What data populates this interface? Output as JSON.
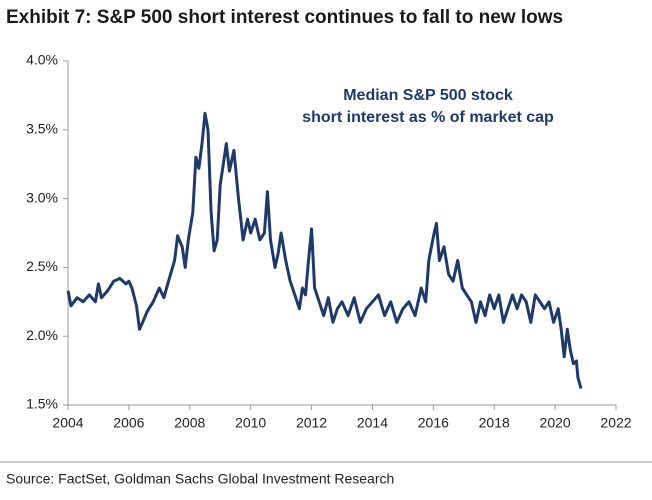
{
  "chart_data": {
    "type": "line",
    "title": "Exhibit 7: S&P 500 short interest continues to fall to new lows",
    "annotation": [
      "Median S&P 500 stock",
      "short interest as % of market cap"
    ],
    "source": "Source: FactSet, Goldman Sachs Global Investment Research",
    "color": "#1f3a68",
    "x": [
      2004.0,
      2004.1,
      2004.3,
      2004.5,
      2004.7,
      2004.9,
      2005.0,
      2005.1,
      2005.3,
      2005.5,
      2005.7,
      2005.9,
      2006.0,
      2006.1,
      2006.25,
      2006.35,
      2006.45,
      2006.6,
      2006.8,
      2007.0,
      2007.15,
      2007.3,
      2007.5,
      2007.6,
      2007.75,
      2007.85,
      2007.95,
      2008.1,
      2008.2,
      2008.3,
      2008.4,
      2008.5,
      2008.6,
      2008.7,
      2008.8,
      2008.9,
      2009.0,
      2009.1,
      2009.2,
      2009.3,
      2009.45,
      2009.6,
      2009.75,
      2009.9,
      2010.0,
      2010.15,
      2010.3,
      2010.45,
      2010.55,
      2010.65,
      2010.8,
      2010.9,
      2011.0,
      2011.15,
      2011.3,
      2011.45,
      2011.6,
      2011.7,
      2011.8,
      2011.9,
      2012.0,
      2012.1,
      2012.25,
      2012.4,
      2012.55,
      2012.7,
      2012.85,
      2013.0,
      2013.2,
      2013.4,
      2013.6,
      2013.8,
      2014.0,
      2014.2,
      2014.4,
      2014.6,
      2014.8,
      2015.0,
      2015.2,
      2015.4,
      2015.6,
      2015.75,
      2015.85,
      2016.0,
      2016.1,
      2016.2,
      2016.35,
      2016.5,
      2016.65,
      2016.8,
      2016.95,
      2017.1,
      2017.25,
      2017.4,
      2017.55,
      2017.7,
      2017.85,
      2018.0,
      2018.15,
      2018.3,
      2018.45,
      2018.6,
      2018.75,
      2018.9,
      2019.05,
      2019.2,
      2019.35,
      2019.5,
      2019.65,
      2019.8,
      2019.95,
      2020.1,
      2020.2,
      2020.3,
      2020.4,
      2020.5,
      2020.6,
      2020.7,
      2020.75,
      2020.85
    ],
    "values": [
      2.33,
      2.22,
      2.28,
      2.25,
      2.3,
      2.25,
      2.38,
      2.28,
      2.33,
      2.4,
      2.42,
      2.38,
      2.4,
      2.35,
      2.22,
      2.05,
      2.1,
      2.18,
      2.25,
      2.35,
      2.28,
      2.4,
      2.55,
      2.73,
      2.65,
      2.5,
      2.7,
      2.9,
      3.3,
      3.22,
      3.4,
      3.62,
      3.5,
      2.9,
      2.62,
      2.7,
      3.1,
      3.25,
      3.4,
      3.2,
      3.35,
      3.0,
      2.7,
      2.85,
      2.75,
      2.85,
      2.7,
      2.75,
      3.05,
      2.7,
      2.5,
      2.6,
      2.75,
      2.55,
      2.4,
      2.3,
      2.2,
      2.35,
      2.3,
      2.55,
      2.78,
      2.35,
      2.25,
      2.15,
      2.28,
      2.1,
      2.2,
      2.25,
      2.15,
      2.28,
      2.1,
      2.2,
      2.25,
      2.3,
      2.15,
      2.25,
      2.1,
      2.2,
      2.25,
      2.15,
      2.35,
      2.25,
      2.55,
      2.72,
      2.82,
      2.55,
      2.65,
      2.45,
      2.4,
      2.55,
      2.35,
      2.3,
      2.25,
      2.1,
      2.25,
      2.15,
      2.3,
      2.2,
      2.3,
      2.1,
      2.2,
      2.3,
      2.2,
      2.3,
      2.25,
      2.1,
      2.3,
      2.25,
      2.2,
      2.25,
      2.1,
      2.2,
      2.05,
      1.85,
      2.05,
      1.9,
      1.8,
      1.82,
      1.7,
      1.62
    ],
    "xlim": [
      2004,
      2022
    ],
    "xticks": [
      2004,
      2006,
      2008,
      2010,
      2012,
      2014,
      2016,
      2018,
      2020,
      2022
    ],
    "ylim": [
      1.5,
      4.0
    ],
    "yticks": [
      {
        "value": 1.5,
        "label": "1.5%"
      },
      {
        "value": 2.0,
        "label": "2.0%"
      },
      {
        "value": 2.5,
        "label": "2.5%"
      },
      {
        "value": 3.0,
        "label": "3.0%"
      },
      {
        "value": 3.5,
        "label": "3.5%"
      },
      {
        "value": 4.0,
        "label": "4.0%"
      }
    ]
  }
}
